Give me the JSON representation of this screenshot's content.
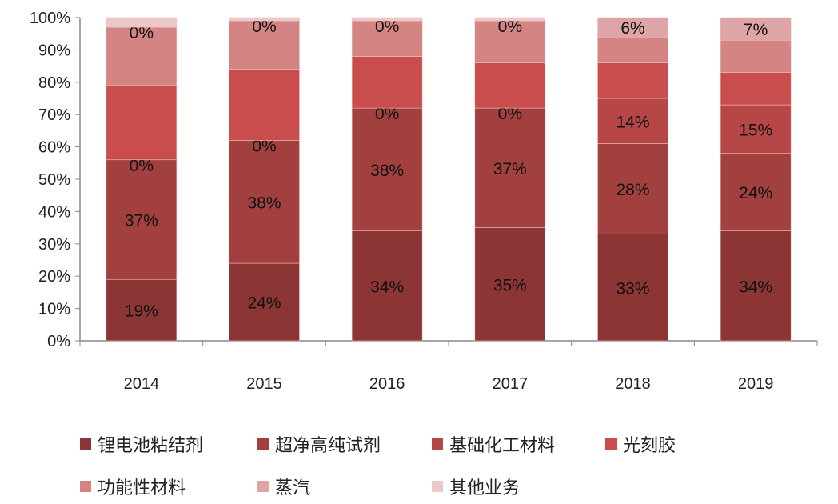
{
  "chart_data": {
    "type": "bar",
    "stacked": "percent",
    "categories": [
      "2014",
      "2015",
      "2016",
      "2017",
      "2018",
      "2019"
    ],
    "ylim": [
      0,
      100
    ],
    "yticks": [
      "0%",
      "10%",
      "20%",
      "30%",
      "40%",
      "50%",
      "60%",
      "70%",
      "80%",
      "90%",
      "100%"
    ],
    "grid": false,
    "legend_position": "bottom",
    "series": [
      {
        "name": "锂电池粘结剂",
        "color": "#8c3535",
        "values": [
          19,
          24,
          34,
          35,
          33,
          34
        ],
        "labels": [
          "19%",
          "24%",
          "34%",
          "35%",
          "33%",
          "34%"
        ]
      },
      {
        "name": "超净高纯试剂",
        "color": "#a23f3f",
        "values": [
          37,
          38,
          38,
          37,
          28,
          24
        ],
        "labels": [
          "37%",
          "38%",
          "38%",
          "37%",
          "28%",
          "24%"
        ]
      },
      {
        "name": "基础化工材料",
        "color": "#b74646",
        "values": [
          0,
          0,
          0,
          0,
          14,
          15
        ],
        "labels": [
          "0%",
          "0%",
          "0%",
          "0%",
          "14%",
          "15%"
        ]
      },
      {
        "name": "光刻胶",
        "color": "#c94d4d",
        "values": [
          23,
          22,
          16,
          14,
          11,
          10
        ]
      },
      {
        "name": "功能性材料",
        "color": "#d58484",
        "values": [
          18,
          15,
          11,
          13,
          8,
          10
        ]
      },
      {
        "name": "蒸汽",
        "color": "#dda5a5",
        "values": [
          0,
          0,
          0,
          0,
          6,
          7
        ],
        "labels": [
          "0%",
          "0%",
          "0%",
          "0%",
          "6%",
          "7%"
        ]
      },
      {
        "name": "其他业务",
        "color": "#ecc8c8",
        "values": [
          3,
          1,
          1,
          1,
          0,
          0
        ]
      }
    ]
  }
}
